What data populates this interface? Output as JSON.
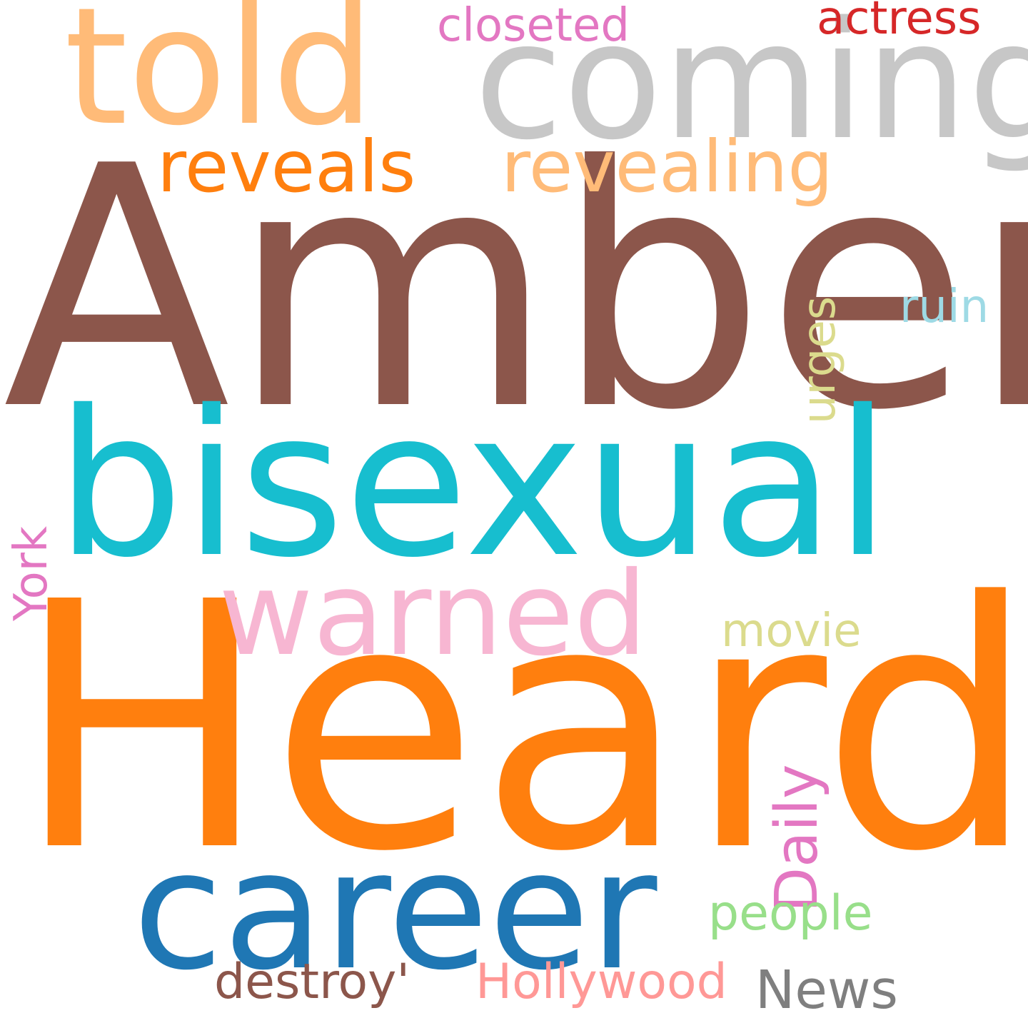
{
  "words": [
    {
      "text": "Amber",
      "color": "#8c564b"
    },
    {
      "text": "Heard",
      "color": "#ff7f0e"
    },
    {
      "text": "bisexual",
      "color": "#17becf"
    },
    {
      "text": "coming",
      "color": "#c7c7c7"
    },
    {
      "text": "told",
      "color": "#ffbb78"
    },
    {
      "text": "career",
      "color": "#1f77b4"
    },
    {
      "text": "warned",
      "color": "#f7b6d2"
    },
    {
      "text": "revealing",
      "color": "#ffbb78"
    },
    {
      "text": "reveals",
      "color": "#ff7f0e"
    },
    {
      "text": "closeted",
      "color": "#e377c2"
    },
    {
      "text": "actress",
      "color": "#d62728"
    },
    {
      "text": "ruin",
      "color": "#9edae5"
    },
    {
      "text": "urges",
      "color": "#dbdb8d"
    },
    {
      "text": "York",
      "color": "#e377c2"
    },
    {
      "text": "movie",
      "color": "#dbdb8d"
    },
    {
      "text": "Daily",
      "color": "#e377c2"
    },
    {
      "text": "people",
      "color": "#98df8a"
    },
    {
      "text": "destroy'",
      "color": "#8c564b"
    },
    {
      "text": "Hollywood",
      "color": "#ff9896"
    },
    {
      "text": "News",
      "color": "#7f7f7f"
    }
  ]
}
